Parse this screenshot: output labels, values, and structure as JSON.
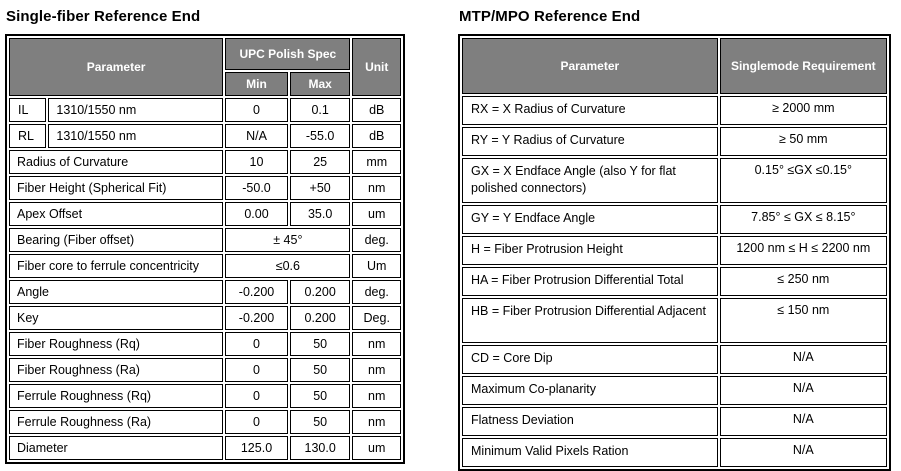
{
  "left_table": {
    "title": "Single-fiber Reference End",
    "header": {
      "parameter": "Parameter",
      "spec_group": "UPC Polish Spec",
      "min": "Min",
      "max": "Max",
      "unit": "Unit"
    },
    "rows": [
      {
        "code": "IL",
        "name": "1310/1550 nm",
        "min": "0",
        "max": "0.1",
        "unit": "dB"
      },
      {
        "code": "RL",
        "name": "1310/1550 nm",
        "min": "N/A",
        "max": "-55.0",
        "unit": "dB"
      },
      {
        "name": "Radius of Curvature",
        "min": "10",
        "max": "25",
        "unit": "mm"
      },
      {
        "name": "Fiber Height (Spherical Fit)",
        "min": "-50.0",
        "max": "+50",
        "unit": "nm"
      },
      {
        "name": "Apex Offset",
        "min": "0.00",
        "max": "35.0",
        "unit": "um"
      },
      {
        "name": "Bearing (Fiber offset)",
        "span": "± 45°",
        "unit": "deg."
      },
      {
        "name": "Fiber core to ferrule concentricity",
        "span": "≤0.6",
        "unit": "Um"
      },
      {
        "name": "Angle",
        "min": "-0.200",
        "max": "0.200",
        "unit": "deg."
      },
      {
        "name": "Key",
        "min": "-0.200",
        "max": "0.200",
        "unit": "Deg."
      },
      {
        "name": "Fiber Roughness (Rq)",
        "min": "0",
        "max": "50",
        "unit": "nm"
      },
      {
        "name": "Fiber Roughness (Ra)",
        "min": "0",
        "max": "50",
        "unit": "nm"
      },
      {
        "name": "Ferrule Roughness (Rq)",
        "min": "0",
        "max": "50",
        "unit": "nm"
      },
      {
        "name": "Ferrule Roughness (Ra)",
        "min": "0",
        "max": "50",
        "unit": "nm"
      },
      {
        "name": "Diameter",
        "min": "125.0",
        "max": "130.0",
        "unit": "um"
      }
    ]
  },
  "right_table": {
    "title": "MTP/MPO Reference End",
    "header": {
      "parameter": "Parameter",
      "requirement": "Singlemode Requirement"
    },
    "rows": [
      {
        "name": "RX = X Radius of Curvature",
        "value": "≥ 2000 mm"
      },
      {
        "name": "RY = Y Radius of Curvature",
        "value": "≥ 50 mm"
      },
      {
        "name": "GX = X Endface Angle (also Y for flat polished connectors)",
        "value": "0.15° ≤GX ≤0.15°",
        "tall": true
      },
      {
        "name": "GY = Y Endface Angle",
        "value": "7.85° ≤ GX ≤ 8.15°"
      },
      {
        "name": "H = Fiber Protrusion Height",
        "value": "1200 nm  ≤ H ≤ 2200 nm"
      },
      {
        "name": "HA = Fiber Protrusion Differential Total",
        "value": "≤ 250 nm"
      },
      {
        "name": "HB = Fiber Protrusion Differential Adjacent",
        "value": "≤ 150 nm",
        "tall": true
      },
      {
        "name": "CD = Core Dip",
        "value": "N/A"
      },
      {
        "name": "Maximum Co-planarity",
        "value": "N/A"
      },
      {
        "name": "Flatness Deviation",
        "value": "N/A"
      },
      {
        "name": "Minimum Valid Pixels Ration",
        "value": "N/A"
      }
    ]
  },
  "colors": {
    "header_bg": "#7f7f7f",
    "header_text": "#ffffff",
    "border": "#000000",
    "text": "#000000",
    "background": "#ffffff"
  }
}
